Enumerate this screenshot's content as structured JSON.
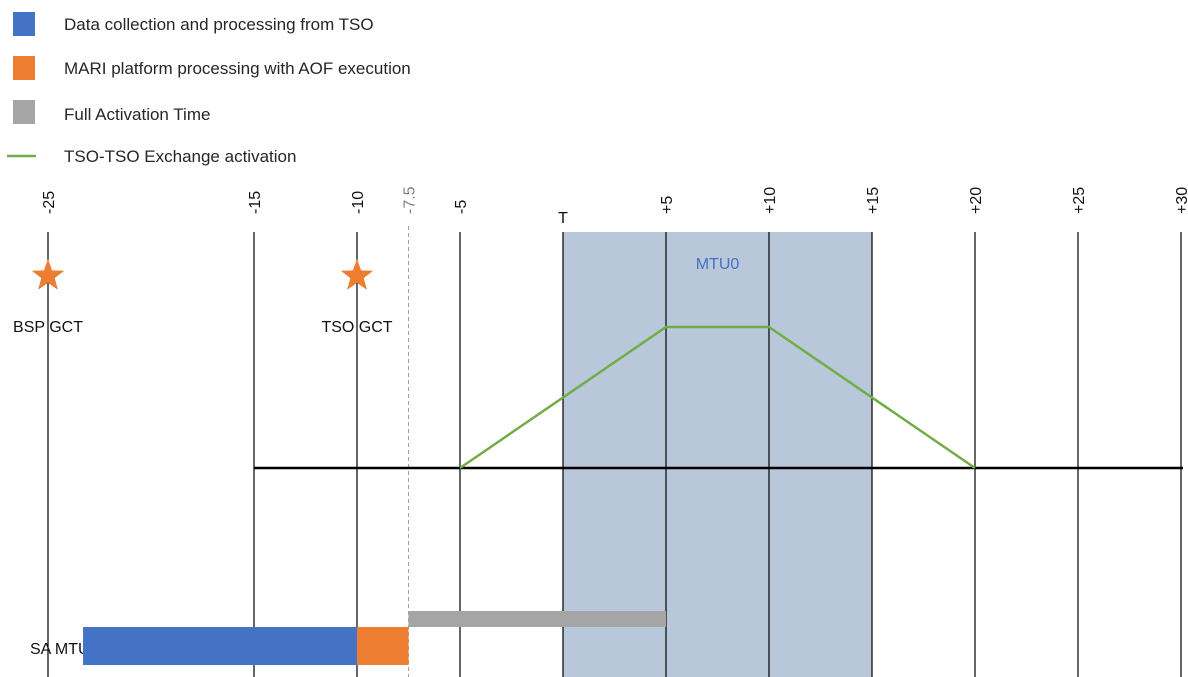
{
  "colors": {
    "data_collection": "#4472C4",
    "mari_processing": "#ED7D31",
    "full_activation": "#A5A5A5",
    "exchange_line": "#70AD47",
    "period_shade": "#B8C8DA",
    "period_label": "#4472C4",
    "star": "#ED7D31",
    "axis": "#000000",
    "dashed": "#A0A0A0"
  },
  "legend": {
    "items": [
      {
        "label": "Data collection and processing  from TSO",
        "swatch": "box",
        "color": "#4472C4"
      },
      {
        "label": "MARI platform processing with AOF execution",
        "swatch": "box",
        "color": "#ED7D31"
      },
      {
        "label": "Full Activation Time",
        "swatch": "box",
        "color": "#A5A5A5"
      },
      {
        "label": "TSO-TSO Exchange activation",
        "swatch": "line",
        "color": "#70AD47"
      }
    ]
  },
  "timeline": {
    "ticks": [
      {
        "value": -25,
        "label": "-25",
        "muted": false
      },
      {
        "value": -15,
        "label": "-15",
        "muted": false
      },
      {
        "value": -10,
        "label": "-10",
        "muted": false
      },
      {
        "value": -7.5,
        "label": "-7.5",
        "muted": true
      },
      {
        "value": -5,
        "label": "-5",
        "muted": false
      },
      {
        "value": 0,
        "label": "T",
        "muted": false
      },
      {
        "value": 5,
        "label": "+5",
        "muted": false
      },
      {
        "value": 10,
        "label": "+10",
        "muted": false
      },
      {
        "value": 15,
        "label": "+15",
        "muted": false
      },
      {
        "value": 20,
        "label": "+20",
        "muted": false
      },
      {
        "value": 25,
        "label": "+25",
        "muted": false
      },
      {
        "value": 30,
        "label": "+30",
        "muted": false
      }
    ],
    "period": {
      "label": "MTU0",
      "start": 0,
      "end": 15
    },
    "markers": [
      {
        "label": "BSP GCT",
        "at": -25
      },
      {
        "label": "TSO GCT",
        "at": -10
      }
    ],
    "baseline": {
      "start": -15,
      "end": 30
    },
    "exchange_activation": [
      {
        "t": -5,
        "level": 0
      },
      {
        "t": 5,
        "level": 1
      },
      {
        "t": 10,
        "level": 1
      },
      {
        "t": 20,
        "level": 0
      }
    ],
    "rows": [
      {
        "label": "SA MTU0",
        "bars": [
          {
            "key": "data_collection",
            "start": -23.3,
            "end": -10
          },
          {
            "key": "mari_processing",
            "start": -10,
            "end": -7.5
          },
          {
            "key": "full_activation",
            "start": -7.5,
            "end": 5
          }
        ]
      }
    ]
  }
}
